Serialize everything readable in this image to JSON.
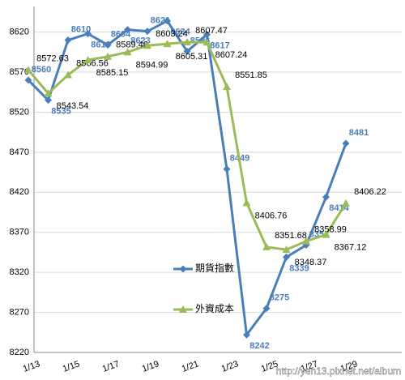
{
  "chart_data": {
    "type": "line",
    "categories": [
      "1/13",
      null,
      "1/15",
      null,
      "1/17",
      null,
      "1/19",
      null,
      "1/21",
      null,
      "1/23",
      null,
      "1/25",
      null,
      "1/27",
      null,
      "1/29"
    ],
    "series": [
      {
        "name": "期貨指數",
        "color": "#4a7ebb",
        "marker": "diamond",
        "values": [
          8560,
          8535,
          8610,
          8618,
          8604,
          8623,
          8621,
          8634,
          8596,
          8617,
          8449,
          8242,
          8275,
          8339,
          8354,
          8414,
          8481
        ]
      },
      {
        "name": "外資成本",
        "color": "#9bbb59",
        "marker": "triangle",
        "values": [
          8572.63,
          8543.54,
          8566.56,
          8585.15,
          8589.46,
          8594.99,
          8603.24,
          8605.31,
          8607.47,
          8607.24,
          8551.85,
          8406.76,
          8351.68,
          8348.37,
          8358.99,
          8367.12,
          8406.22
        ]
      }
    ],
    "ylim": [
      8220,
      8652
    ],
    "yticks": [
      8220,
      8270,
      8320,
      8370,
      8420,
      8470,
      8520,
      8570,
      8620
    ],
    "grid": true,
    "watermark": "http://yen13.pixnet.net/album"
  }
}
